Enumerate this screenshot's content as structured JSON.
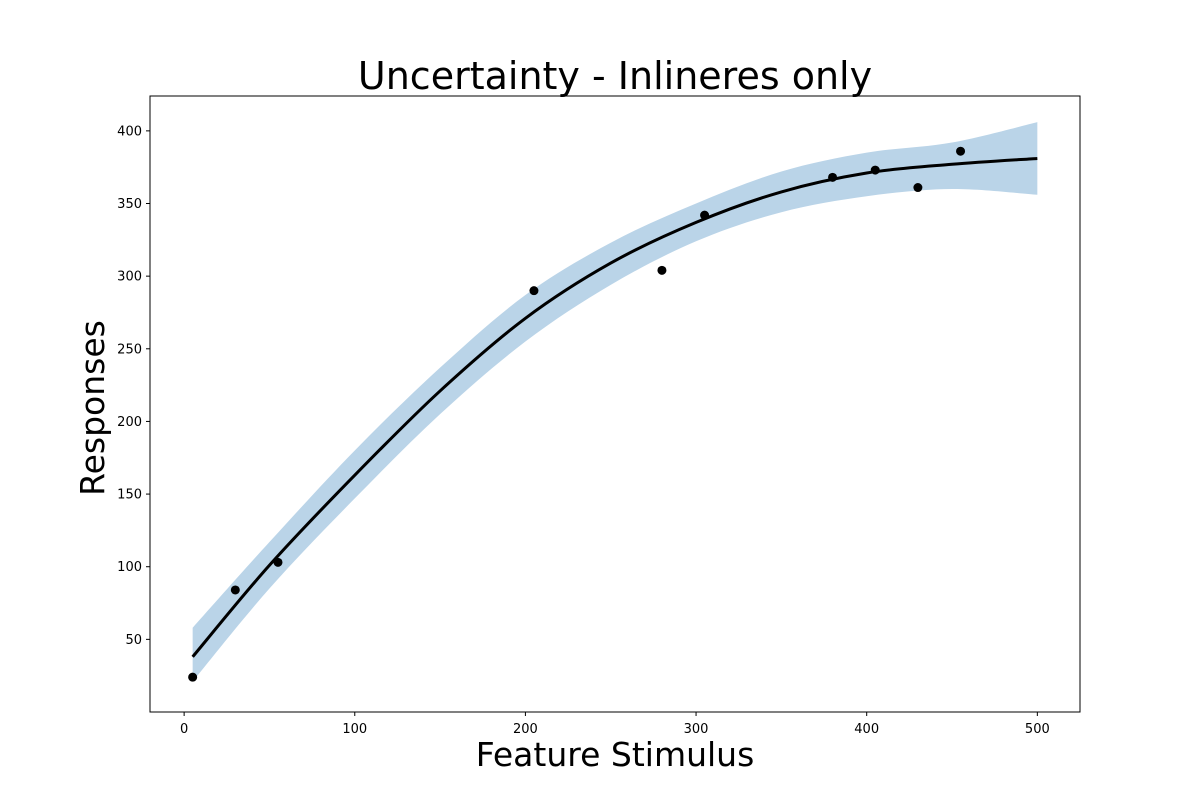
{
  "chart_data": {
    "type": "scatter",
    "title": "Uncertainty - Inlineres only",
    "xlabel": "Feature Stimulus",
    "ylabel": "Responses",
    "xlim": [
      -20,
      525
    ],
    "ylim": [
      0,
      424
    ],
    "xticks": [
      0,
      100,
      200,
      300,
      400,
      500
    ],
    "yticks": [
      50,
      100,
      150,
      200,
      250,
      300,
      350,
      400
    ],
    "grid": false,
    "colors": {
      "points": "#000000",
      "fit_line": "#000000",
      "band": "#bad4e8",
      "axes": "#000000"
    },
    "points": {
      "x": [
        5,
        30,
        55,
        205,
        280,
        305,
        380,
        405,
        430,
        455
      ],
      "y": [
        24,
        84,
        103,
        290,
        304,
        342,
        368,
        373,
        361,
        386
      ]
    },
    "fit": {
      "x": [
        5,
        50,
        100,
        150,
        200,
        250,
        300,
        350,
        400,
        450,
        500
      ],
      "y": [
        38,
        101,
        163,
        221,
        271,
        309,
        337,
        358,
        371,
        377,
        381
      ]
    },
    "band": {
      "x": [
        5,
        50,
        100,
        150,
        200,
        250,
        300,
        350,
        400,
        450,
        500
      ],
      "lower": [
        21,
        85,
        147,
        205,
        255,
        294,
        324,
        344,
        355,
        360,
        356
      ],
      "upper": [
        58,
        117,
        180,
        237,
        287,
        323,
        350,
        372,
        385,
        392,
        406
      ]
    }
  }
}
